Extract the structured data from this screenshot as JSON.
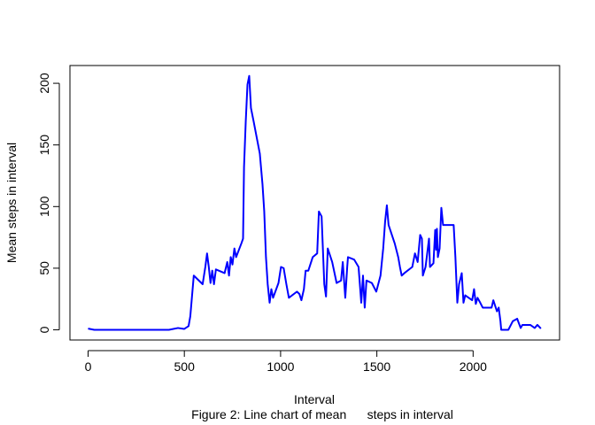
{
  "chart_data": {
    "type": "line",
    "x_label": "Interval",
    "y_label": "Mean steps in interval",
    "caption": "Figure 2: Line chart of mean      steps in interval",
    "x": [
      0,
      32,
      236,
      420,
      467,
      499,
      522,
      531,
      549,
      595,
      609,
      618,
      627,
      636,
      645,
      654,
      664,
      709,
      723,
      732,
      741,
      750,
      760,
      769,
      796,
      805,
      810,
      819,
      828,
      837,
      846,
      860,
      892,
      906,
      915,
      924,
      933,
      943,
      952,
      961,
      989,
      1002,
      1016,
      1030,
      1043,
      1085,
      1098,
      1108,
      1121,
      1130,
      1144,
      1167,
      1190,
      1199,
      1213,
      1227,
      1236,
      1245,
      1268,
      1291,
      1314,
      1323,
      1336,
      1346,
      1350,
      1382,
      1405,
      1419,
      1428,
      1437,
      1446,
      1474,
      1497,
      1519,
      1533,
      1543,
      1552,
      1561,
      1593,
      1611,
      1620,
      1629,
      1643,
      1684,
      1698,
      1712,
      1725,
      1734,
      1739,
      1753,
      1771,
      1776,
      1794,
      1803,
      1808,
      1812,
      1817,
      1826,
      1835,
      1844,
      1899,
      1908,
      1918,
      1927,
      1941,
      1950,
      1959,
      1995,
      2005,
      2014,
      2023,
      2037,
      2050,
      2096,
      2105,
      2124,
      2133,
      2142,
      2146,
      2183,
      2206,
      2229,
      2247,
      2256,
      2297,
      2320,
      2334,
      2352
    ],
    "series": [
      {
        "name": "mean steps",
        "color": "#0000ff",
        "values": [
          1,
          0,
          0,
          0,
          1.5,
          0.7,
          3,
          11,
          44,
          37,
          51,
          62,
          51,
          38,
          48,
          37,
          49,
          46,
          55,
          44,
          59,
          53,
          66,
          59,
          70,
          74,
          132,
          169,
          199,
          206,
          180,
          169,
          143,
          118,
          96,
          59,
          37,
          22,
          33,
          26,
          38,
          51,
          50,
          37,
          26,
          31,
          29,
          24,
          33,
          48,
          48,
          59,
          62,
          96,
          92,
          37,
          27,
          66,
          55,
          38,
          40,
          55,
          26,
          51,
          59,
          57,
          51,
          22,
          44,
          18,
          40,
          38,
          31,
          44,
          66,
          88,
          101,
          85,
          70,
          59,
          51,
          44,
          46,
          51,
          62,
          55,
          77,
          74,
          44,
          51,
          74,
          51,
          54,
          81,
          65,
          82,
          59,
          66,
          99,
          85,
          85,
          59,
          22,
          37,
          46,
          22,
          28,
          24,
          33,
          21,
          26,
          22,
          18,
          18,
          24,
          15,
          18,
          7,
          0,
          0,
          7,
          9,
          1.5,
          4,
          4,
          1.5,
          4,
          1
        ]
      }
    ],
    "xlim": [
      -94.2,
      2449.2
    ],
    "ylim": [
      -8.25,
      214.42
    ],
    "xticks": [
      0,
      500,
      1000,
      1500,
      2000
    ],
    "yticks": [
      0,
      50,
      100,
      150,
      200
    ]
  }
}
